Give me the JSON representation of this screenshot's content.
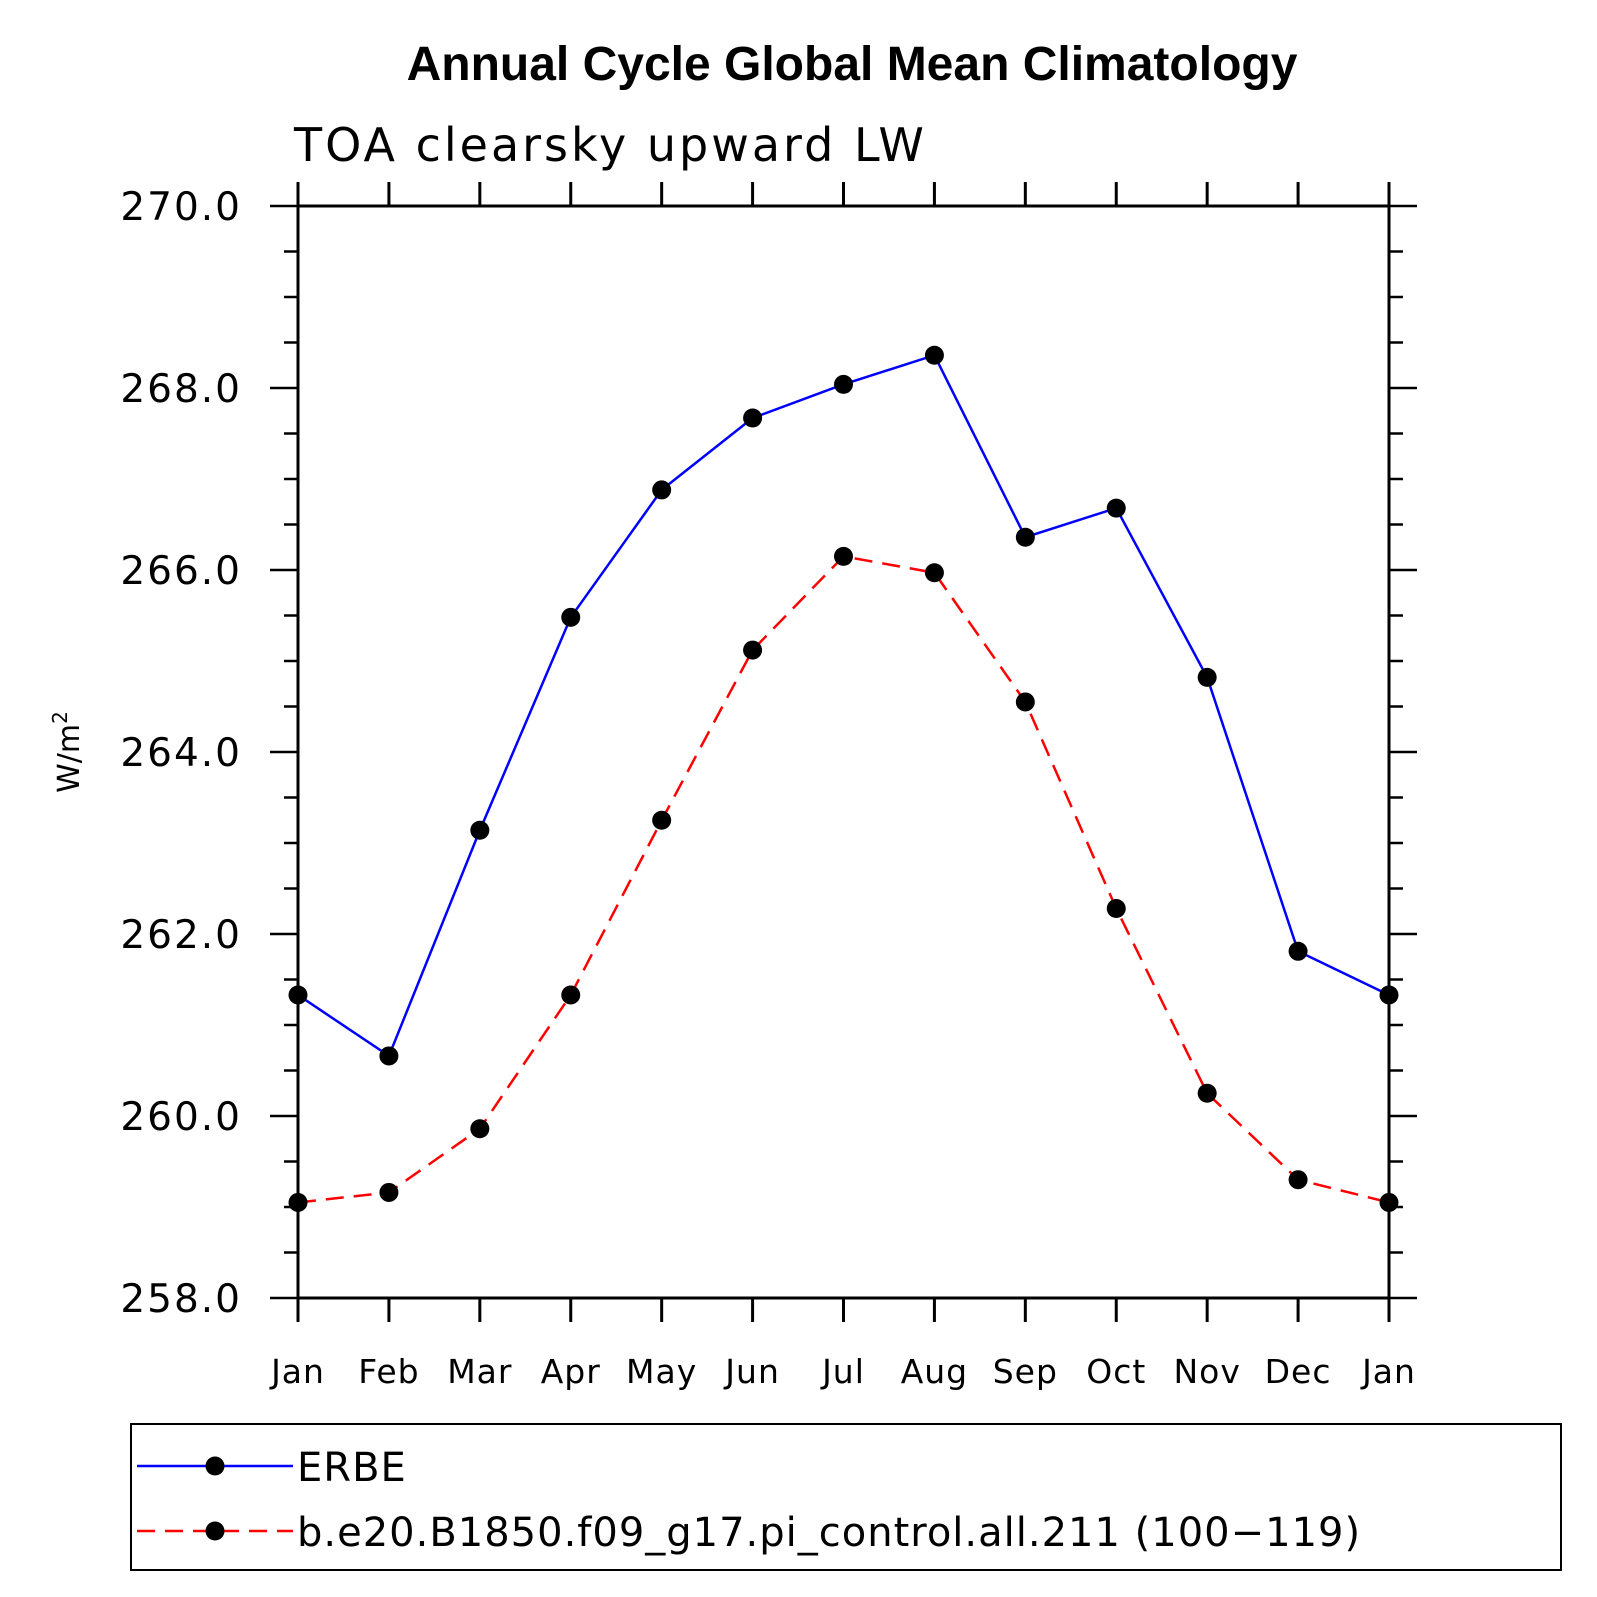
{
  "chart_data": {
    "type": "line",
    "title": "Annual Cycle Global Mean Climatology",
    "subtitle": "TOA clearsky upward LW",
    "ylabel": "W/m",
    "ylabel_superscript": "2",
    "xlabel": "",
    "categories": [
      "Jan",
      "Feb",
      "Mar",
      "Apr",
      "May",
      "Jun",
      "Jul",
      "Aug",
      "Sep",
      "Oct",
      "Nov",
      "Dec",
      "Jan"
    ],
    "ylim": [
      258.0,
      270.0
    ],
    "yticks": [
      "258.0",
      "260.0",
      "262.0",
      "264.0",
      "266.0",
      "268.0",
      "270.0"
    ],
    "series": [
      {
        "name": "ERBE",
        "color": "#0000ff",
        "dash": "solid",
        "values": [
          261.33,
          260.66,
          263.14,
          265.48,
          266.88,
          267.67,
          268.04,
          268.36,
          266.36,
          266.68,
          264.82,
          261.81,
          261.33
        ]
      },
      {
        "name": "b.e20.B1850.f09_g17.pi_control.all.211 (100−119)",
        "color": "#ff0000",
        "dash": "dashed",
        "values": [
          259.05,
          259.16,
          259.86,
          261.33,
          263.25,
          265.12,
          266.15,
          265.97,
          264.55,
          262.28,
          260.25,
          259.3,
          259.05
        ]
      }
    ],
    "legend_position": "bottom"
  }
}
